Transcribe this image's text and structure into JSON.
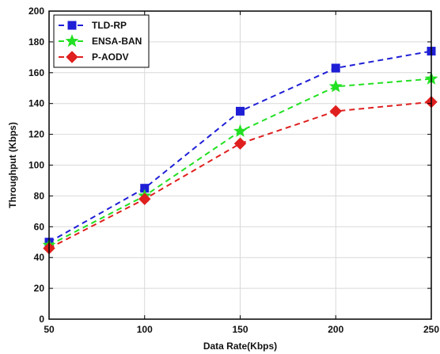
{
  "chart_data": {
    "type": "line",
    "title": "",
    "xlabel": "Data Rate(Kbps)",
    "ylabel": "Throughput (Kbps)",
    "x": [
      50,
      100,
      150,
      200,
      250
    ],
    "xlim": [
      50,
      250
    ],
    "ylim": [
      0,
      200
    ],
    "xticks": [
      "50",
      "100",
      "150",
      "200",
      "250"
    ],
    "yticks": [
      "0",
      "20",
      "40",
      "60",
      "80",
      "100",
      "120",
      "140",
      "160",
      "180",
      "200"
    ],
    "grid": true,
    "legend_position": "top-left",
    "series": [
      {
        "name": "TLD-RP",
        "color": "#1f1fd6",
        "marker": "square",
        "values": [
          50,
          85,
          135,
          163,
          174
        ]
      },
      {
        "name": "ENSA-BAN",
        "color": "#22e022",
        "marker": "star",
        "values": [
          48,
          80,
          122,
          151,
          156
        ]
      },
      {
        "name": "P-AODV",
        "color": "#e01f1f",
        "marker": "diamond",
        "values": [
          46,
          78,
          114,
          135,
          141
        ]
      }
    ]
  }
}
